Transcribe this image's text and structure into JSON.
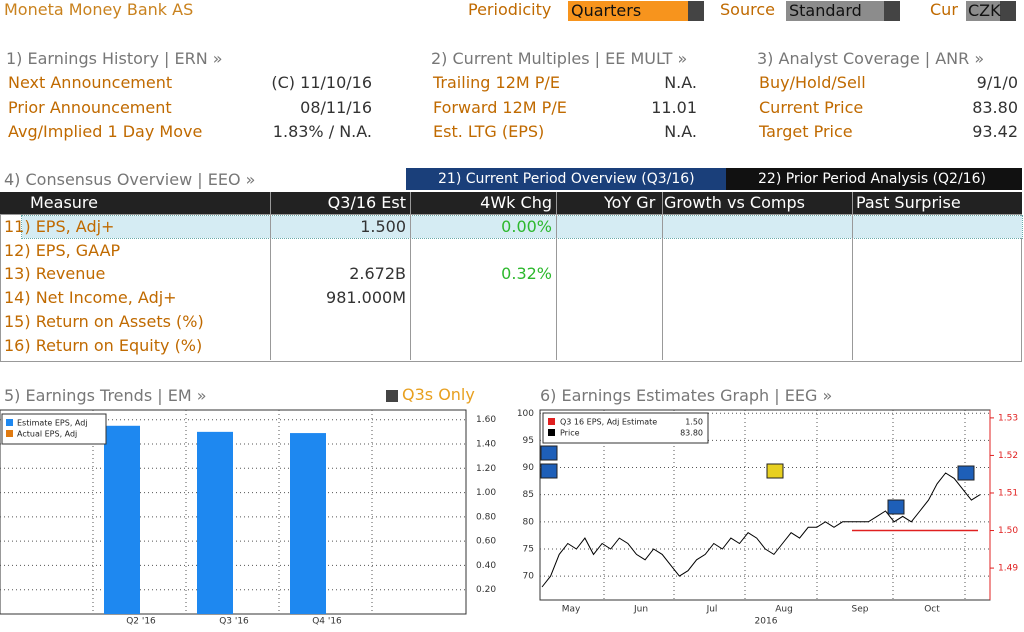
{
  "header": {
    "title": "Moneta Money Bank AS",
    "periodicity_label": "Periodicity",
    "periodicity": "Quarters",
    "source_label": "Source",
    "source": "Standard",
    "cur_label": "Cur",
    "cur": "CZK"
  },
  "panels": [
    {
      "heading": "1) Earnings History | ERN »",
      "rows": [
        [
          "Next Announcement",
          "(C)  11/10/16"
        ],
        [
          "Prior Announcement",
          "08/11/16"
        ],
        [
          "Avg/Implied 1 Day Move",
          "1.83% / N.A."
        ]
      ]
    },
    {
      "heading": "2) Current Multiples | EE MULT »",
      "rows": [
        [
          "Trailing 12M P/E",
          "N.A."
        ],
        [
          "Forward 12M P/E",
          "11.01"
        ],
        [
          "Est. LTG (EPS)",
          "N.A."
        ]
      ]
    },
    {
      "heading": "3) Analyst Coverage | ANR »",
      "rows": [
        [
          "Buy/Hold/Sell",
          "9/1/0"
        ],
        [
          "Current Price",
          "83.80"
        ],
        [
          "Target Price",
          "93.42"
        ]
      ]
    }
  ],
  "consensus": {
    "heading": "4) Consensus Overview | EEO »",
    "tabs": [
      "21) Current Period Overview (Q3/16)",
      "22) Prior Period Analysis (Q2/16)"
    ],
    "columns": [
      "Measure",
      "Q3/16 Est",
      "4Wk Chg",
      "YoY Gr",
      "Growth vs Comps",
      "Past Surprise"
    ],
    "rows": [
      {
        "label": "11) EPS, Adj+",
        "est": "1.500",
        "chg": "0.00%"
      },
      {
        "label": "12) EPS, GAAP"
      },
      {
        "label": "13) Revenue",
        "est": "2.672B",
        "chg": "0.32%"
      },
      {
        "label": "14) Net Income, Adj+",
        "est": "981.000M"
      },
      {
        "label": "15) Return on Assets (%)"
      },
      {
        "label": "16) Return on Equity (%)"
      }
    ]
  },
  "earnings_trends": {
    "type": "bar",
    "heading": "5) Earnings Trends | EM »",
    "toggle": "Q3s Only",
    "categories": [
      "Q2 '16",
      "Q3 '16",
      "Q4 '16"
    ],
    "series": [
      {
        "name": "Estimate EPS, Adj",
        "color": "#1e88f0",
        "values": [
          1.55,
          1.5,
          1.49
        ]
      },
      {
        "name": "Actual EPS, Adj",
        "color": "#e07a10",
        "values": [
          null,
          null,
          null
        ]
      }
    ],
    "ylim": [
      0,
      1.68
    ],
    "yticks": [
      {
        "value": 0.2,
        "label": "0.20"
      },
      {
        "value": 0.4,
        "label": "0.40"
      },
      {
        "value": 0.6,
        "label": "0.60"
      },
      {
        "value": 0.8,
        "label": "0.80"
      },
      {
        "value": 1.0,
        "label": "1.00"
      },
      {
        "value": 1.2,
        "label": "1.20"
      },
      {
        "value": 1.4,
        "label": "1.40"
      },
      {
        "value": 1.6,
        "label": "1.60"
      }
    ]
  },
  "estimates_graph": {
    "type": "line",
    "heading": "6) Earnings Estimates Graph | EEG »",
    "months": [
      "May",
      "Jun",
      "Jul",
      "Aug",
      "Sep",
      "Oct"
    ],
    "year": "2016",
    "series": [
      {
        "name": "Q3 16 EPS, Adj Estimate",
        "legend_value": "1.50",
        "color": "#e02020",
        "axis": "y2",
        "values": [
          1.5,
          1.5
        ]
      },
      {
        "name": "Price",
        "legend_value": "83.80",
        "color": "#000000",
        "values": [
          68,
          70,
          74,
          76,
          75,
          77,
          74,
          76,
          75,
          77,
          76,
          74,
          73,
          75,
          74,
          72,
          70,
          71,
          73,
          74,
          76,
          75,
          77,
          76,
          78,
          77,
          75,
          74,
          76,
          78,
          77,
          79,
          79,
          80,
          79,
          80,
          80,
          80,
          80,
          81,
          82,
          80,
          81,
          80,
          82,
          84,
          87,
          89,
          88,
          86,
          84,
          85
        ]
      }
    ],
    "ylim": [
      65.6,
      100.6
    ],
    "yticks": [
      70,
      75,
      80,
      85,
      90,
      95,
      100
    ],
    "y2lim": [
      1.4815,
      1.5321
    ],
    "y2ticks": [
      {
        "value": 1.49,
        "label": "1.49"
      },
      {
        "value": 1.5,
        "label": "1.50"
      },
      {
        "value": 1.51,
        "label": "1.51"
      },
      {
        "value": 1.52,
        "label": "1.52"
      },
      {
        "value": 1.53,
        "label": "1.53"
      }
    ]
  }
}
